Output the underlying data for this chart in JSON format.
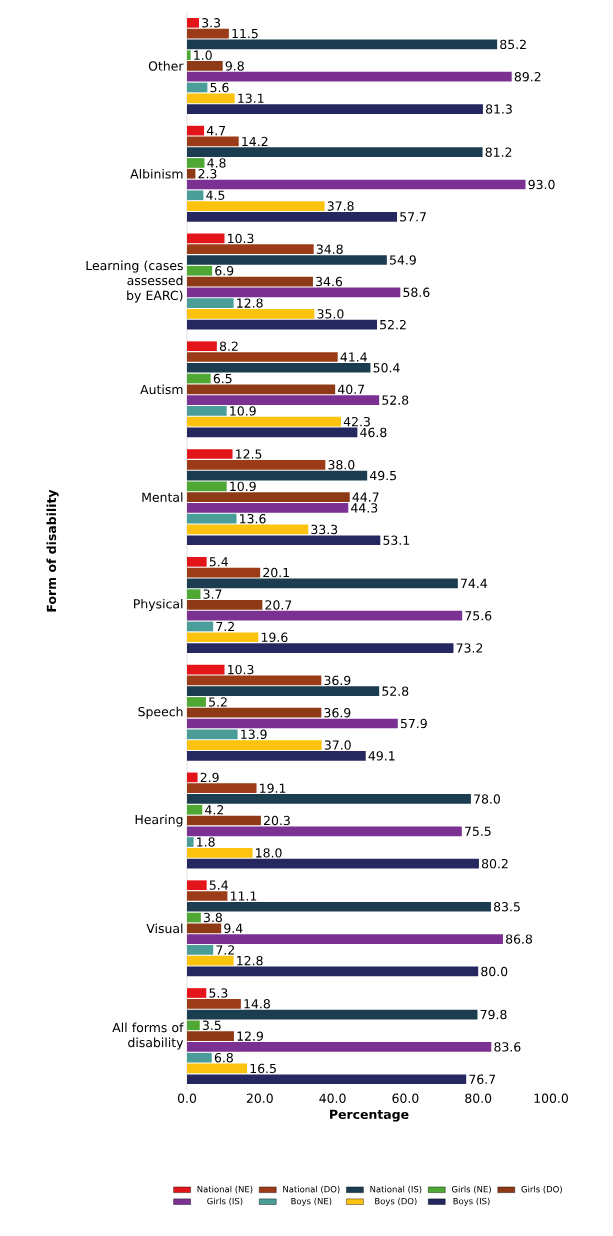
{
  "chart_data": {
    "type": "bar",
    "orientation": "horizontal",
    "xlabel": "Percentage",
    "ylabel": "Form of disability",
    "categories": [
      "Other",
      "Albinism",
      "Learning (cases assessed by EARC)",
      "Autism",
      "Mental",
      "Physical",
      "Speech",
      "Hearing",
      "Visual",
      "All forms of disability"
    ],
    "xlim": [
      0,
      100
    ],
    "xticks": [
      {
        "value": 0,
        "label": "0.0"
      },
      {
        "value": 20,
        "label": "20.0"
      },
      {
        "value": 40,
        "label": "40.0"
      },
      {
        "value": 60,
        "label": "60.0"
      },
      {
        "value": 80,
        "label": "80.0"
      },
      {
        "value": 100,
        "label": "100.0"
      }
    ],
    "legend": "bottom",
    "series": [
      {
        "name": "National (NE)",
        "color": "#e3151b",
        "values": [
          3.3,
          4.7,
          10.3,
          8.2,
          12.5,
          5.4,
          10.3,
          2.9,
          5.4,
          5.3
        ],
        "value_labels": [
          "3.3",
          "4.7",
          "10.3",
          "8.2",
          "12.5",
          "5.4",
          "10.3",
          "2.9",
          "5.4",
          "5.3"
        ]
      },
      {
        "name": "National (DO)",
        "color": "#9c3b17",
        "values": [
          11.5,
          14.2,
          34.8,
          41.4,
          38.0,
          20.1,
          36.9,
          19.1,
          11.1,
          14.8
        ],
        "value_labels": [
          "11.5",
          "14.2",
          "34.8",
          "41.4",
          "38.0",
          "20.1",
          "36.9",
          "19.1",
          "11.1",
          "14.8"
        ]
      },
      {
        "name": "National (IS)",
        "color": "#1c3d4f",
        "values": [
          85.2,
          81.2,
          54.9,
          50.4,
          49.5,
          74.4,
          52.8,
          78.0,
          83.5,
          79.8
        ],
        "value_labels": [
          "85.2",
          "81.2",
          "54.9",
          "50.4",
          "49.5",
          "74.4",
          "52.8",
          "78.0",
          "83.5",
          "79.8"
        ]
      },
      {
        "name": "Girls (NE)",
        "color": "#4ea833",
        "values": [
          1.0,
          4.8,
          6.9,
          6.5,
          10.9,
          3.7,
          5.2,
          4.2,
          3.8,
          3.5
        ],
        "value_labels": [
          "1.0",
          "4.8",
          "6.9",
          "6.5",
          "10.9",
          "3.7",
          "5.2",
          "4.2",
          "3.8",
          "3.5"
        ]
      },
      {
        "name": "Girls (DO)",
        "color": "#8e3a17",
        "values": [
          9.8,
          2.3,
          34.6,
          40.7,
          44.7,
          20.7,
          36.9,
          20.3,
          9.4,
          12.9
        ],
        "value_labels": [
          "9.8",
          "2.3",
          "34.6",
          "40.7",
          "44.7",
          "20.7",
          "36.9",
          "20.3",
          "9.4",
          "12.9"
        ]
      },
      {
        "name": "Girls (IS)",
        "color": "#7a3191",
        "values": [
          89.2,
          93.0,
          58.6,
          52.8,
          44.3,
          75.6,
          57.9,
          75.5,
          86.8,
          83.6
        ],
        "value_labels": [
          "89.2",
          "93.0",
          "58.6",
          "52.8",
          "44.3",
          "75.6",
          "57.9",
          "75.5",
          "86.8",
          "83.6"
        ]
      },
      {
        "name": "Boys (NE)",
        "color": "#4a9d98",
        "values": [
          5.6,
          4.5,
          12.8,
          10.9,
          13.6,
          7.2,
          13.9,
          1.8,
          7.2,
          6.8
        ],
        "value_labels": [
          "5.6",
          "4.5",
          "12.8",
          "10.9",
          "13.6",
          "7.2",
          "13.9",
          "1.8",
          "7.2",
          "6.8"
        ]
      },
      {
        "name": "Boys (DO)",
        "color": "#fbc30d",
        "values": [
          13.1,
          37.8,
          35.0,
          42.3,
          33.3,
          19.6,
          37.0,
          18.0,
          12.8,
          16.5
        ],
        "value_labels": [
          "13.1",
          "37.8",
          "35.0",
          "42.3",
          "33.3",
          "19.6",
          "37.0",
          "18.0",
          "12.8",
          "16.5"
        ]
      },
      {
        "name": "Boys (IS)",
        "color": "#24285e",
        "values": [
          81.3,
          57.7,
          52.2,
          46.8,
          53.1,
          73.2,
          49.1,
          80.2,
          80.0,
          76.7
        ],
        "value_labels": [
          "81.3",
          "57.7",
          "52.2",
          "46.8",
          "53.1",
          "73.2",
          "49.1",
          "80.2",
          "80.0",
          "76.7"
        ]
      }
    ]
  }
}
